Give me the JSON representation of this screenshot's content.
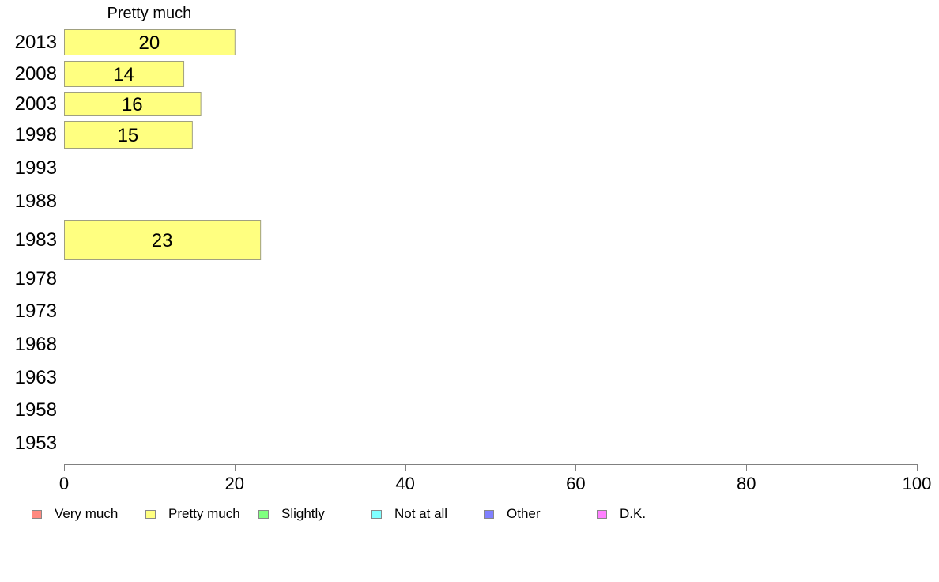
{
  "chart_data": {
    "type": "bar",
    "orientation": "horizontal",
    "stacked": true,
    "categories": [
      "2013",
      "2008",
      "2003",
      "1998",
      "1993",
      "1988",
      "1983",
      "1978",
      "1973",
      "1968",
      "1963",
      "1958",
      "1953"
    ],
    "series": [
      {
        "name": "Very much",
        "color": "#ff8a80",
        "values": [
          null,
          null,
          null,
          null,
          null,
          null,
          null,
          null,
          null,
          null,
          null,
          null,
          null
        ]
      },
      {
        "name": "Pretty much",
        "color": "#ffff80",
        "values": [
          20,
          14,
          16,
          15,
          null,
          null,
          23,
          null,
          null,
          null,
          null,
          null,
          null
        ]
      },
      {
        "name": "Slightly",
        "color": "#80ff80",
        "values": [
          null,
          null,
          null,
          null,
          null,
          null,
          null,
          null,
          null,
          null,
          null,
          null,
          null
        ]
      },
      {
        "name": "Not at all",
        "color": "#80ffff",
        "values": [
          null,
          null,
          null,
          null,
          null,
          null,
          null,
          null,
          null,
          null,
          null,
          null,
          null
        ]
      },
      {
        "name": "Other",
        "color": "#8080ff",
        "values": [
          null,
          null,
          null,
          null,
          null,
          null,
          null,
          null,
          null,
          null,
          null,
          null,
          null
        ]
      },
      {
        "name": "D.K.",
        "color": "#ff80ff",
        "values": [
          null,
          null,
          null,
          null,
          null,
          null,
          null,
          null,
          null,
          null,
          null,
          null,
          null
        ]
      }
    ],
    "series_header": "Pretty much",
    "xlim": [
      0,
      100
    ],
    "xticks": [
      "0",
      "20",
      "40",
      "60",
      "80",
      "100"
    ],
    "grid": false,
    "legend_position": "bottom",
    "bar_border_color": "#a0a080",
    "axis_color": "#808080"
  }
}
